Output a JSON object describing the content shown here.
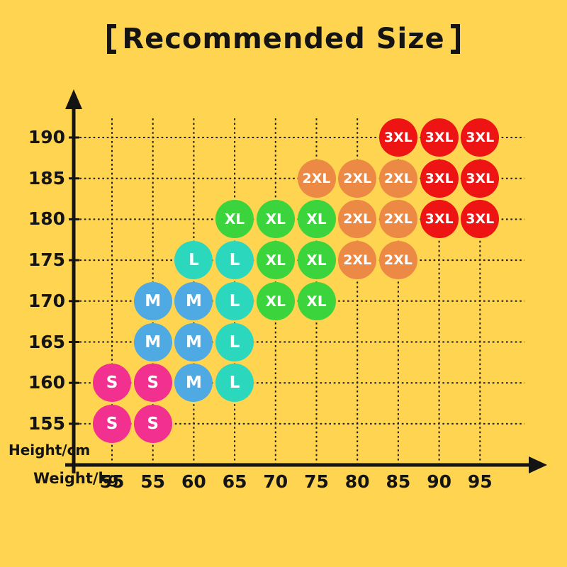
{
  "page": {
    "background": "#FED451"
  },
  "title": {
    "text": "【Recommended Size】",
    "inner": "Recommended Size"
  },
  "axes": {
    "y_label": "Height/cm",
    "x_label": "Weight/kg"
  },
  "colors": {
    "background": "#FED451",
    "axis": "#141414",
    "grid": "#1C1C1C",
    "bubble_text": "#FFFFFF"
  },
  "chart_data": {
    "type": "scatter",
    "title": "【Recommended Size】",
    "xlabel": "Weight/kg",
    "ylabel": "Height/cm",
    "grid": true,
    "x_tick_labels": [
      "55",
      "55",
      "60",
      "65",
      "70",
      "75",
      "80",
      "85",
      "90",
      "95"
    ],
    "y_tick_labels": [
      "190",
      "185",
      "180",
      "175",
      "170",
      "165",
      "160",
      "155"
    ],
    "sizes": [
      {
        "label": "S",
        "color": "#F2308F"
      },
      {
        "label": "M",
        "color": "#4FA9E2"
      },
      {
        "label": "L",
        "color": "#2CD8BD"
      },
      {
        "label": "XL",
        "color": "#3CD43C"
      },
      {
        "label": "2XL",
        "color": "#EC8A45"
      },
      {
        "label": "3XL",
        "color": "#EE1414"
      }
    ],
    "points": [
      {
        "x_index": 7,
        "x_label": "85",
        "height": "190",
        "size": "3XL"
      },
      {
        "x_index": 8,
        "x_label": "90",
        "height": "190",
        "size": "3XL"
      },
      {
        "x_index": 9,
        "x_label": "95",
        "height": "190",
        "size": "3XL"
      },
      {
        "x_index": 5,
        "x_label": "75",
        "height": "185",
        "size": "2XL"
      },
      {
        "x_index": 6,
        "x_label": "80",
        "height": "185",
        "size": "2XL"
      },
      {
        "x_index": 7,
        "x_label": "85",
        "height": "185",
        "size": "2XL"
      },
      {
        "x_index": 8,
        "x_label": "90",
        "height": "185",
        "size": "3XL"
      },
      {
        "x_index": 9,
        "x_label": "95",
        "height": "185",
        "size": "3XL"
      },
      {
        "x_index": 3,
        "x_label": "65",
        "height": "180",
        "size": "XL"
      },
      {
        "x_index": 4,
        "x_label": "70",
        "height": "180",
        "size": "XL"
      },
      {
        "x_index": 5,
        "x_label": "75",
        "height": "180",
        "size": "XL"
      },
      {
        "x_index": 6,
        "x_label": "80",
        "height": "180",
        "size": "2XL"
      },
      {
        "x_index": 7,
        "x_label": "85",
        "height": "180",
        "size": "2XL"
      },
      {
        "x_index": 8,
        "x_label": "90",
        "height": "180",
        "size": "3XL"
      },
      {
        "x_index": 9,
        "x_label": "95",
        "height": "180",
        "size": "3XL"
      },
      {
        "x_index": 2,
        "x_label": "60",
        "height": "175",
        "size": "L"
      },
      {
        "x_index": 3,
        "x_label": "65",
        "height": "175",
        "size": "L"
      },
      {
        "x_index": 4,
        "x_label": "70",
        "height": "175",
        "size": "XL"
      },
      {
        "x_index": 5,
        "x_label": "75",
        "height": "175",
        "size": "XL"
      },
      {
        "x_index": 6,
        "x_label": "80",
        "height": "175",
        "size": "2XL"
      },
      {
        "x_index": 7,
        "x_label": "85",
        "height": "175",
        "size": "2XL"
      },
      {
        "x_index": 1,
        "x_label": "55",
        "height": "170",
        "size": "M"
      },
      {
        "x_index": 2,
        "x_label": "60",
        "height": "170",
        "size": "M"
      },
      {
        "x_index": 3,
        "x_label": "65",
        "height": "170",
        "size": "L"
      },
      {
        "x_index": 4,
        "x_label": "70",
        "height": "170",
        "size": "XL"
      },
      {
        "x_index": 5,
        "x_label": "75",
        "height": "170",
        "size": "XL"
      },
      {
        "x_index": 1,
        "x_label": "55",
        "height": "165",
        "size": "M"
      },
      {
        "x_index": 2,
        "x_label": "60",
        "height": "165",
        "size": "M"
      },
      {
        "x_index": 3,
        "x_label": "65",
        "height": "165",
        "size": "L"
      },
      {
        "x_index": 0,
        "x_label": "55",
        "height": "160",
        "size": "S"
      },
      {
        "x_index": 1,
        "x_label": "55",
        "height": "160",
        "size": "S"
      },
      {
        "x_index": 2,
        "x_label": "60",
        "height": "160",
        "size": "M"
      },
      {
        "x_index": 3,
        "x_label": "65",
        "height": "160",
        "size": "L"
      },
      {
        "x_index": 0,
        "x_label": "55",
        "height": "155",
        "size": "S"
      },
      {
        "x_index": 1,
        "x_label": "55",
        "height": "155",
        "size": "S"
      }
    ]
  }
}
